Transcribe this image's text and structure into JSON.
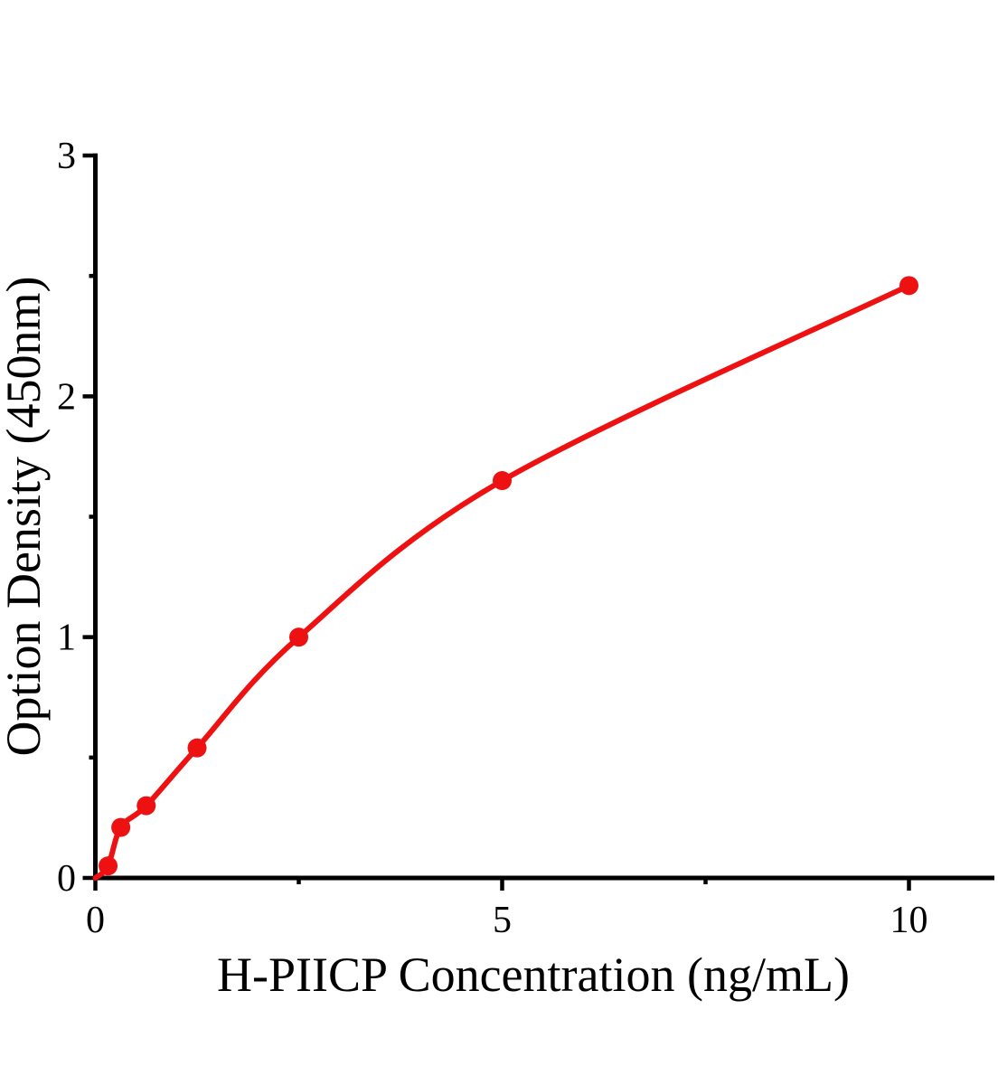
{
  "style": {
    "background": "#ffffff",
    "axis_color": "#000000",
    "accent_color": "#ee1111"
  },
  "chart_data": {
    "type": "line",
    "title": "",
    "xlabel": "H-PIICP Concentration（ng/mL）",
    "ylabel": "Option Density（450nm）",
    "series": [
      {
        "x": [
          0.156,
          0.3125,
          0.625,
          1.25,
          2.5,
          5,
          10
        ],
        "y": [
          0.05,
          0.21,
          0.3,
          0.54,
          1.0,
          1.65,
          2.46
        ],
        "color": "#ee1111",
        "marker": "filled-circle",
        "curve_starts_at_origin": true
      }
    ],
    "xlim": [
      0,
      11.05
    ],
    "ylim": [
      0,
      3
    ],
    "x_major_ticks": [
      0,
      5,
      10
    ],
    "x_minor_ticks": [
      2.5,
      7.5
    ],
    "y_major_ticks": [
      0,
      1,
      2,
      3
    ],
    "y_minor_ticks": [
      0.5,
      1.5,
      2.5
    ],
    "grid": false,
    "legend": "none"
  }
}
